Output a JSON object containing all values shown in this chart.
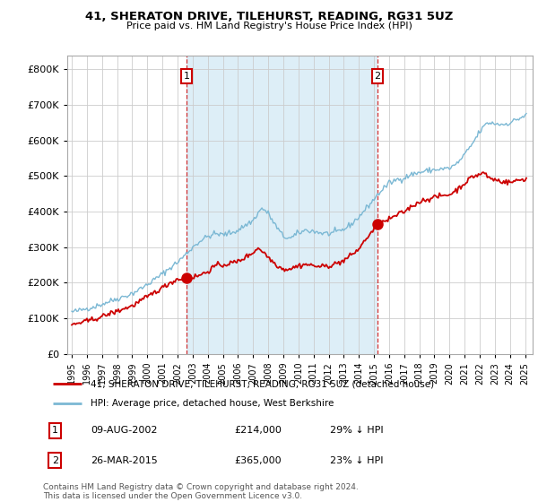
{
  "title": "41, SHERATON DRIVE, TILEHURST, READING, RG31 5UZ",
  "subtitle": "Price paid vs. HM Land Registry's House Price Index (HPI)",
  "legend_line1": "41, SHERATON DRIVE, TILEHURST, READING, RG31 5UZ (detached house)",
  "legend_line2": "HPI: Average price, detached house, West Berkshire",
  "footnote": "Contains HM Land Registry data © Crown copyright and database right 2024.\nThis data is licensed under the Open Government Licence v3.0.",
  "transaction1_date": "09-AUG-2002",
  "transaction1_price": "£214,000",
  "transaction1_hpi": "29% ↓ HPI",
  "transaction1_x": 2002.6,
  "transaction1_y": 214000,
  "transaction2_date": "26-MAR-2015",
  "transaction2_price": "£365,000",
  "transaction2_hpi": "23% ↓ HPI",
  "transaction2_x": 2015.23,
  "transaction2_y": 365000,
  "hpi_color": "#7bb8d4",
  "sale_color": "#cc0000",
  "vline_color": "#cc0000",
  "shade_color": "#ddeef7",
  "background_color": "#ffffff",
  "grid_color": "#cccccc",
  "ylim": [
    0,
    840000
  ],
  "xlim": [
    1994.7,
    2025.5
  ],
  "ylabel_ticks": [
    0,
    100000,
    200000,
    300000,
    400000,
    500000,
    600000,
    700000,
    800000
  ],
  "xticks": [
    1995,
    1996,
    1997,
    1998,
    1999,
    2000,
    2001,
    2002,
    2003,
    2004,
    2005,
    2006,
    2007,
    2008,
    2009,
    2010,
    2011,
    2012,
    2013,
    2014,
    2015,
    2016,
    2017,
    2018,
    2019,
    2020,
    2021,
    2022,
    2023,
    2024,
    2025
  ]
}
